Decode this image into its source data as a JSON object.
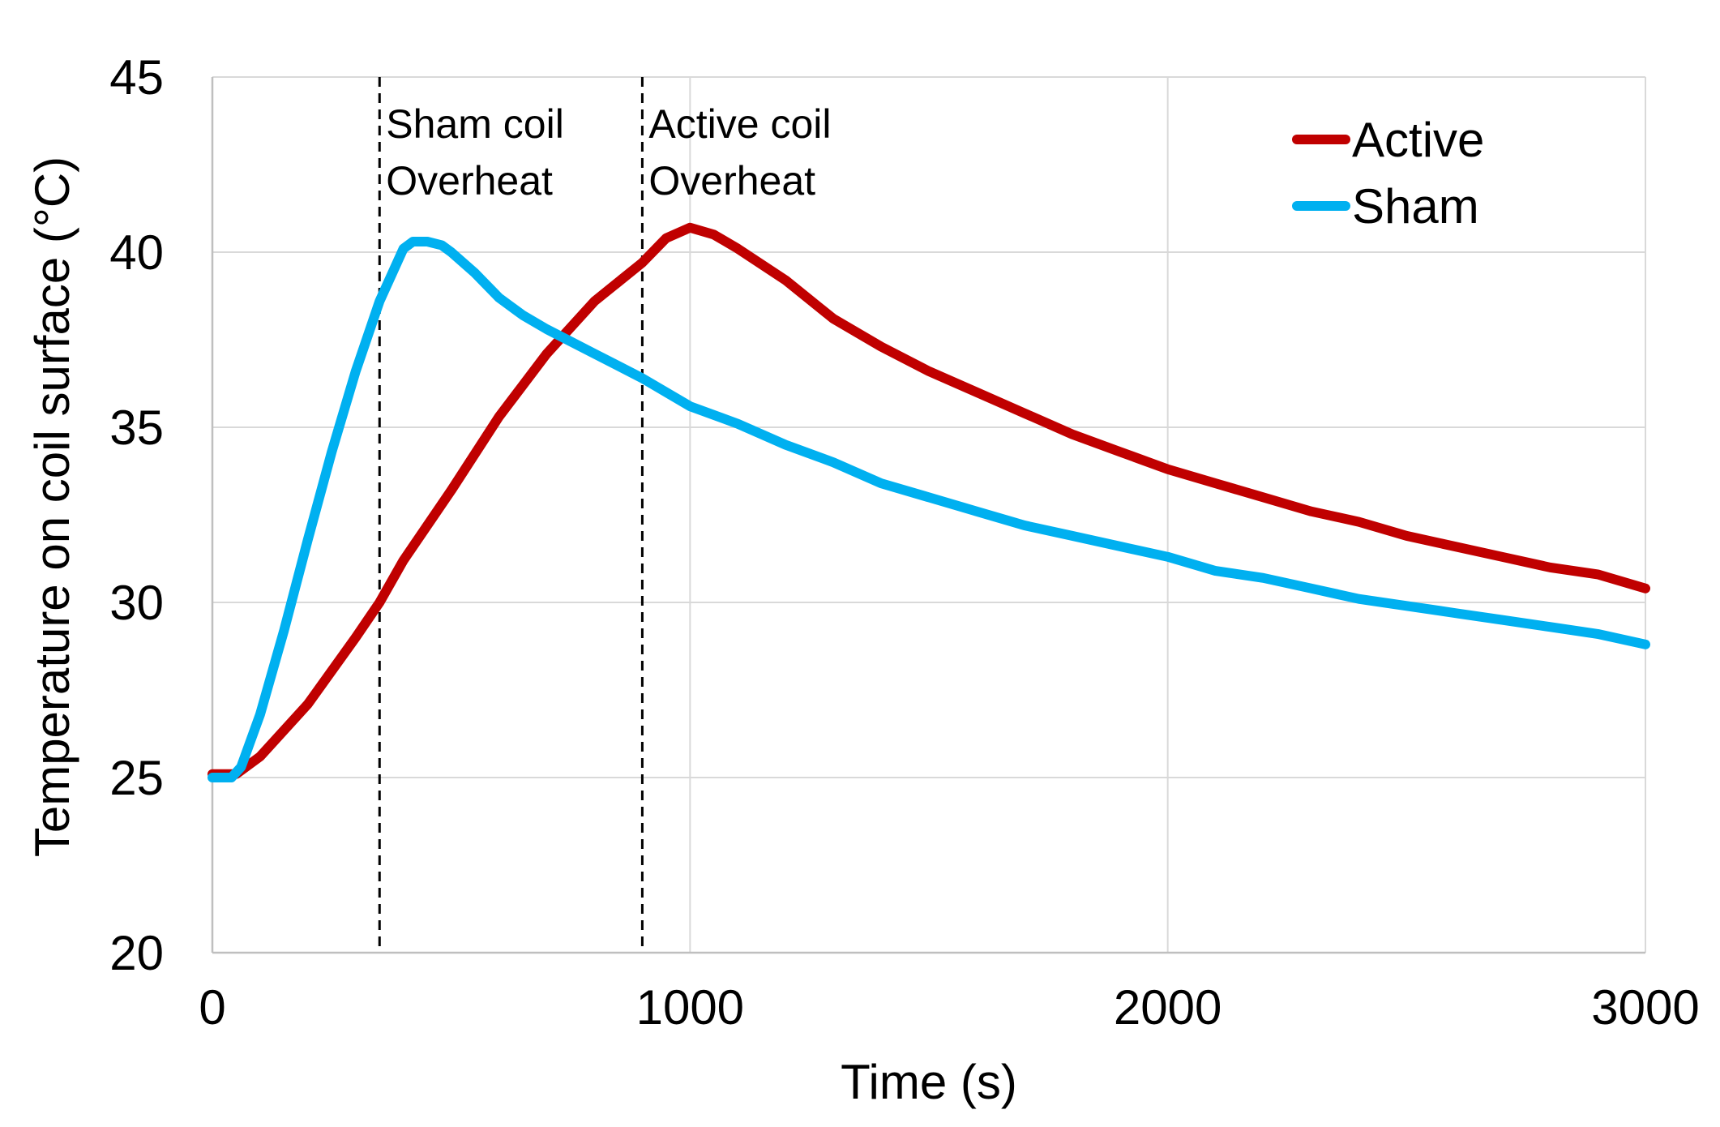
{
  "chart_data": {
    "type": "line",
    "title": "",
    "xlabel": "Time (s)",
    "ylabel": "Temperature on coil surface (°C)",
    "xlim": [
      0,
      3000
    ],
    "ylim": [
      20,
      45
    ],
    "x_ticks": [
      0,
      1000,
      2000,
      3000
    ],
    "y_ticks": [
      20,
      25,
      30,
      35,
      40,
      45
    ],
    "x_tick_labels": [
      "0",
      "1000",
      "2000",
      "3000"
    ],
    "y_tick_labels": [
      "20",
      "25",
      "30",
      "35",
      "40",
      "45"
    ],
    "grid": true,
    "legend_position": "top-right",
    "series": [
      {
        "name": "Active",
        "color": "#c00000",
        "x": [
          0,
          50,
          100,
          200,
          300,
          350,
          400,
          500,
          600,
          700,
          800,
          900,
          950,
          1000,
          1050,
          1100,
          1200,
          1300,
          1400,
          1500,
          1600,
          1700,
          1800,
          1900,
          2000,
          2100,
          2200,
          2300,
          2400,
          2500,
          2600,
          2700,
          2800,
          2900,
          3000
        ],
        "values": [
          25.1,
          25.1,
          25.6,
          27.1,
          29.0,
          30.0,
          31.2,
          33.2,
          35.3,
          37.1,
          38.6,
          39.7,
          40.4,
          40.7,
          40.5,
          40.1,
          39.2,
          38.1,
          37.3,
          36.6,
          36.0,
          35.4,
          34.8,
          34.3,
          33.8,
          33.4,
          33.0,
          32.6,
          32.3,
          31.9,
          31.6,
          31.3,
          31.0,
          30.8,
          30.4
        ]
      },
      {
        "name": "Sham",
        "color": "#00b0f0",
        "x": [
          0,
          40,
          60,
          100,
          150,
          200,
          250,
          300,
          350,
          400,
          420,
          450,
          480,
          500,
          550,
          600,
          650,
          700,
          800,
          900,
          1000,
          1100,
          1200,
          1300,
          1400,
          1500,
          1600,
          1700,
          1800,
          1900,
          2000,
          2100,
          2200,
          2300,
          2400,
          2500,
          2600,
          2700,
          2800,
          2900,
          3000
        ],
        "values": [
          25.0,
          25.0,
          25.3,
          26.8,
          29.2,
          31.8,
          34.3,
          36.6,
          38.6,
          40.1,
          40.3,
          40.3,
          40.2,
          40.0,
          39.4,
          38.7,
          38.2,
          37.8,
          37.1,
          36.4,
          35.6,
          35.1,
          34.5,
          34.0,
          33.4,
          33.0,
          32.6,
          32.2,
          31.9,
          31.6,
          31.3,
          30.9,
          30.7,
          30.4,
          30.1,
          29.9,
          29.7,
          29.5,
          29.3,
          29.1,
          28.8
        ]
      }
    ],
    "annotations": [
      {
        "x": 350,
        "lines": [
          "Sham coil",
          "Overheat"
        ]
      },
      {
        "x": 900,
        "lines": [
          "Active coil",
          "Overheat"
        ]
      }
    ]
  }
}
